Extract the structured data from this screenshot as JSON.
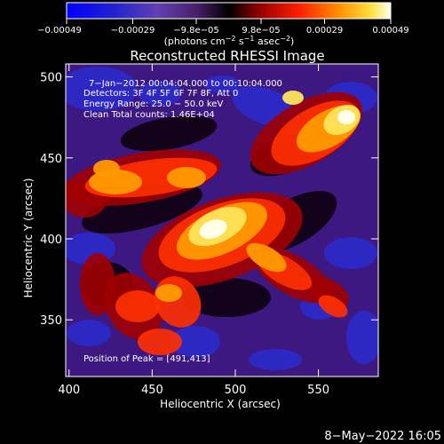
{
  "chart_data": {
    "type": "heatmap",
    "title": "Reconstructed RHESSI Image",
    "xlabel": "Heliocentric X (arcsec)",
    "ylabel": "Heliocentric Y (arcsec)",
    "xlim": [
      398,
      586
    ],
    "ylim": [
      315,
      508
    ],
    "x_ticks": [
      400,
      450,
      500,
      550
    ],
    "y_ticks": [
      350,
      400,
      450,
      500
    ],
    "colorbar": {
      "ticks": [
        -0.00049,
        -0.00029,
        -9.8e-05,
        9.8e-05,
        0.00029,
        0.00049
      ],
      "tick_labels": [
        "−0.00049",
        "−0.00029",
        "−9.8e−05",
        "9.8e−05",
        "0.00029",
        "0.00049"
      ],
      "range": [
        -0.00049,
        0.00049
      ],
      "unit_base": "(photons cm",
      "unit_exp1": "−2",
      "unit_mid": " s",
      "unit_exp2": "−1",
      "unit_mid2": " asec",
      "unit_exp3": "−2",
      "unit_end": ")"
    },
    "annotations": {
      "line1": "7−Jan−2012 00:04:04.000 to 00:10:04.000",
      "line2": "Detectors: 3F 4F 5F 6F 7F 8F, Att 0",
      "line3": "Energy Range: 25.0 − 50.0 keV",
      "line4": "Clean     Total counts: 1.46E+04",
      "peak": "Position of Peak = [491,413]"
    },
    "footer": "8−May−2022 16:05",
    "peak_position": [
      491,
      413
    ]
  }
}
